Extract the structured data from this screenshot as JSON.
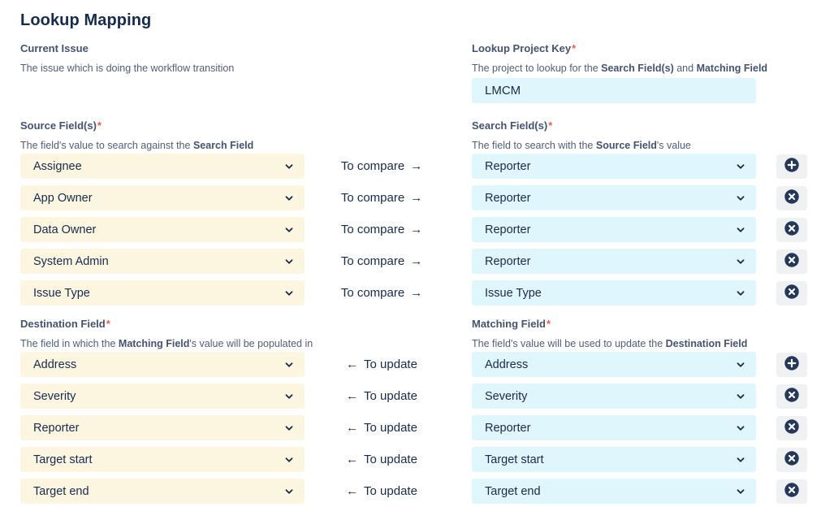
{
  "page": {
    "title": "Lookup Mapping"
  },
  "colors": {
    "text": "#172B4D",
    "heading": "#44546F",
    "required_asterisk": "#E5604F",
    "source_select_bg": "#FCF6E1",
    "search_select_bg": "#DFF6FC",
    "button_bg": "#F0F1F3",
    "button_icon_circle": "#253858"
  },
  "current_issue": {
    "title": "Current Issue",
    "description": [
      {
        "text": "The issue which is doing the workflow transition",
        "bold": false
      }
    ]
  },
  "lookup_project_key": {
    "title": "Lookup Project Key",
    "required": "*",
    "description": [
      {
        "text": "The project to lookup for the ",
        "bold": false
      },
      {
        "text": "Search Field(s)",
        "bold": true
      },
      {
        "text": " and ",
        "bold": false
      },
      {
        "text": "Matching Field",
        "bold": true
      }
    ],
    "value": "LMCM"
  },
  "source_field": {
    "title": "Source Field(s)",
    "required": "*",
    "description": [
      {
        "text": "The field's value to search against the ",
        "bold": false
      },
      {
        "text": "Search Field",
        "bold": true
      }
    ]
  },
  "search_field": {
    "title": "Search Field(s)",
    "required": "*",
    "description": [
      {
        "text": "The field to search with the ",
        "bold": false
      },
      {
        "text": "Source Field",
        "bold": true
      },
      {
        "text": "'s value",
        "bold": false
      }
    ]
  },
  "destination_field": {
    "title": "Destination Field",
    "required": "*",
    "description": [
      {
        "text": "The field in which the ",
        "bold": false
      },
      {
        "text": "Matching Field",
        "bold": true
      },
      {
        "text": "'s value will be populated in",
        "bold": false
      }
    ]
  },
  "matching_field": {
    "title": "Matching Field",
    "required": "*",
    "description": [
      {
        "text": "The field's value will be used to update the ",
        "bold": false
      },
      {
        "text": "Destination Field",
        "bold": true
      }
    ]
  },
  "labels": {
    "compare": "To compare",
    "compare_arrow": "→",
    "update": "To update",
    "update_arrow": "←"
  },
  "compare_rows": [
    {
      "source": "Assignee",
      "search": "Reporter",
      "action": "add"
    },
    {
      "source": "App Owner",
      "search": "Reporter",
      "action": "remove"
    },
    {
      "source": "Data Owner",
      "search": "Reporter",
      "action": "remove"
    },
    {
      "source": "System Admin",
      "search": "Reporter",
      "action": "remove"
    },
    {
      "source": "Issue Type",
      "search": "Issue Type",
      "action": "remove"
    }
  ],
  "update_rows": [
    {
      "destination": "Address",
      "matching": "Address",
      "action": "add"
    },
    {
      "destination": "Severity",
      "matching": "Severity",
      "action": "remove"
    },
    {
      "destination": "Reporter",
      "matching": "Reporter",
      "action": "remove"
    },
    {
      "destination": "Target start",
      "matching": "Target start",
      "action": "remove"
    },
    {
      "destination": "Target end",
      "matching": "Target end",
      "action": "remove"
    }
  ]
}
